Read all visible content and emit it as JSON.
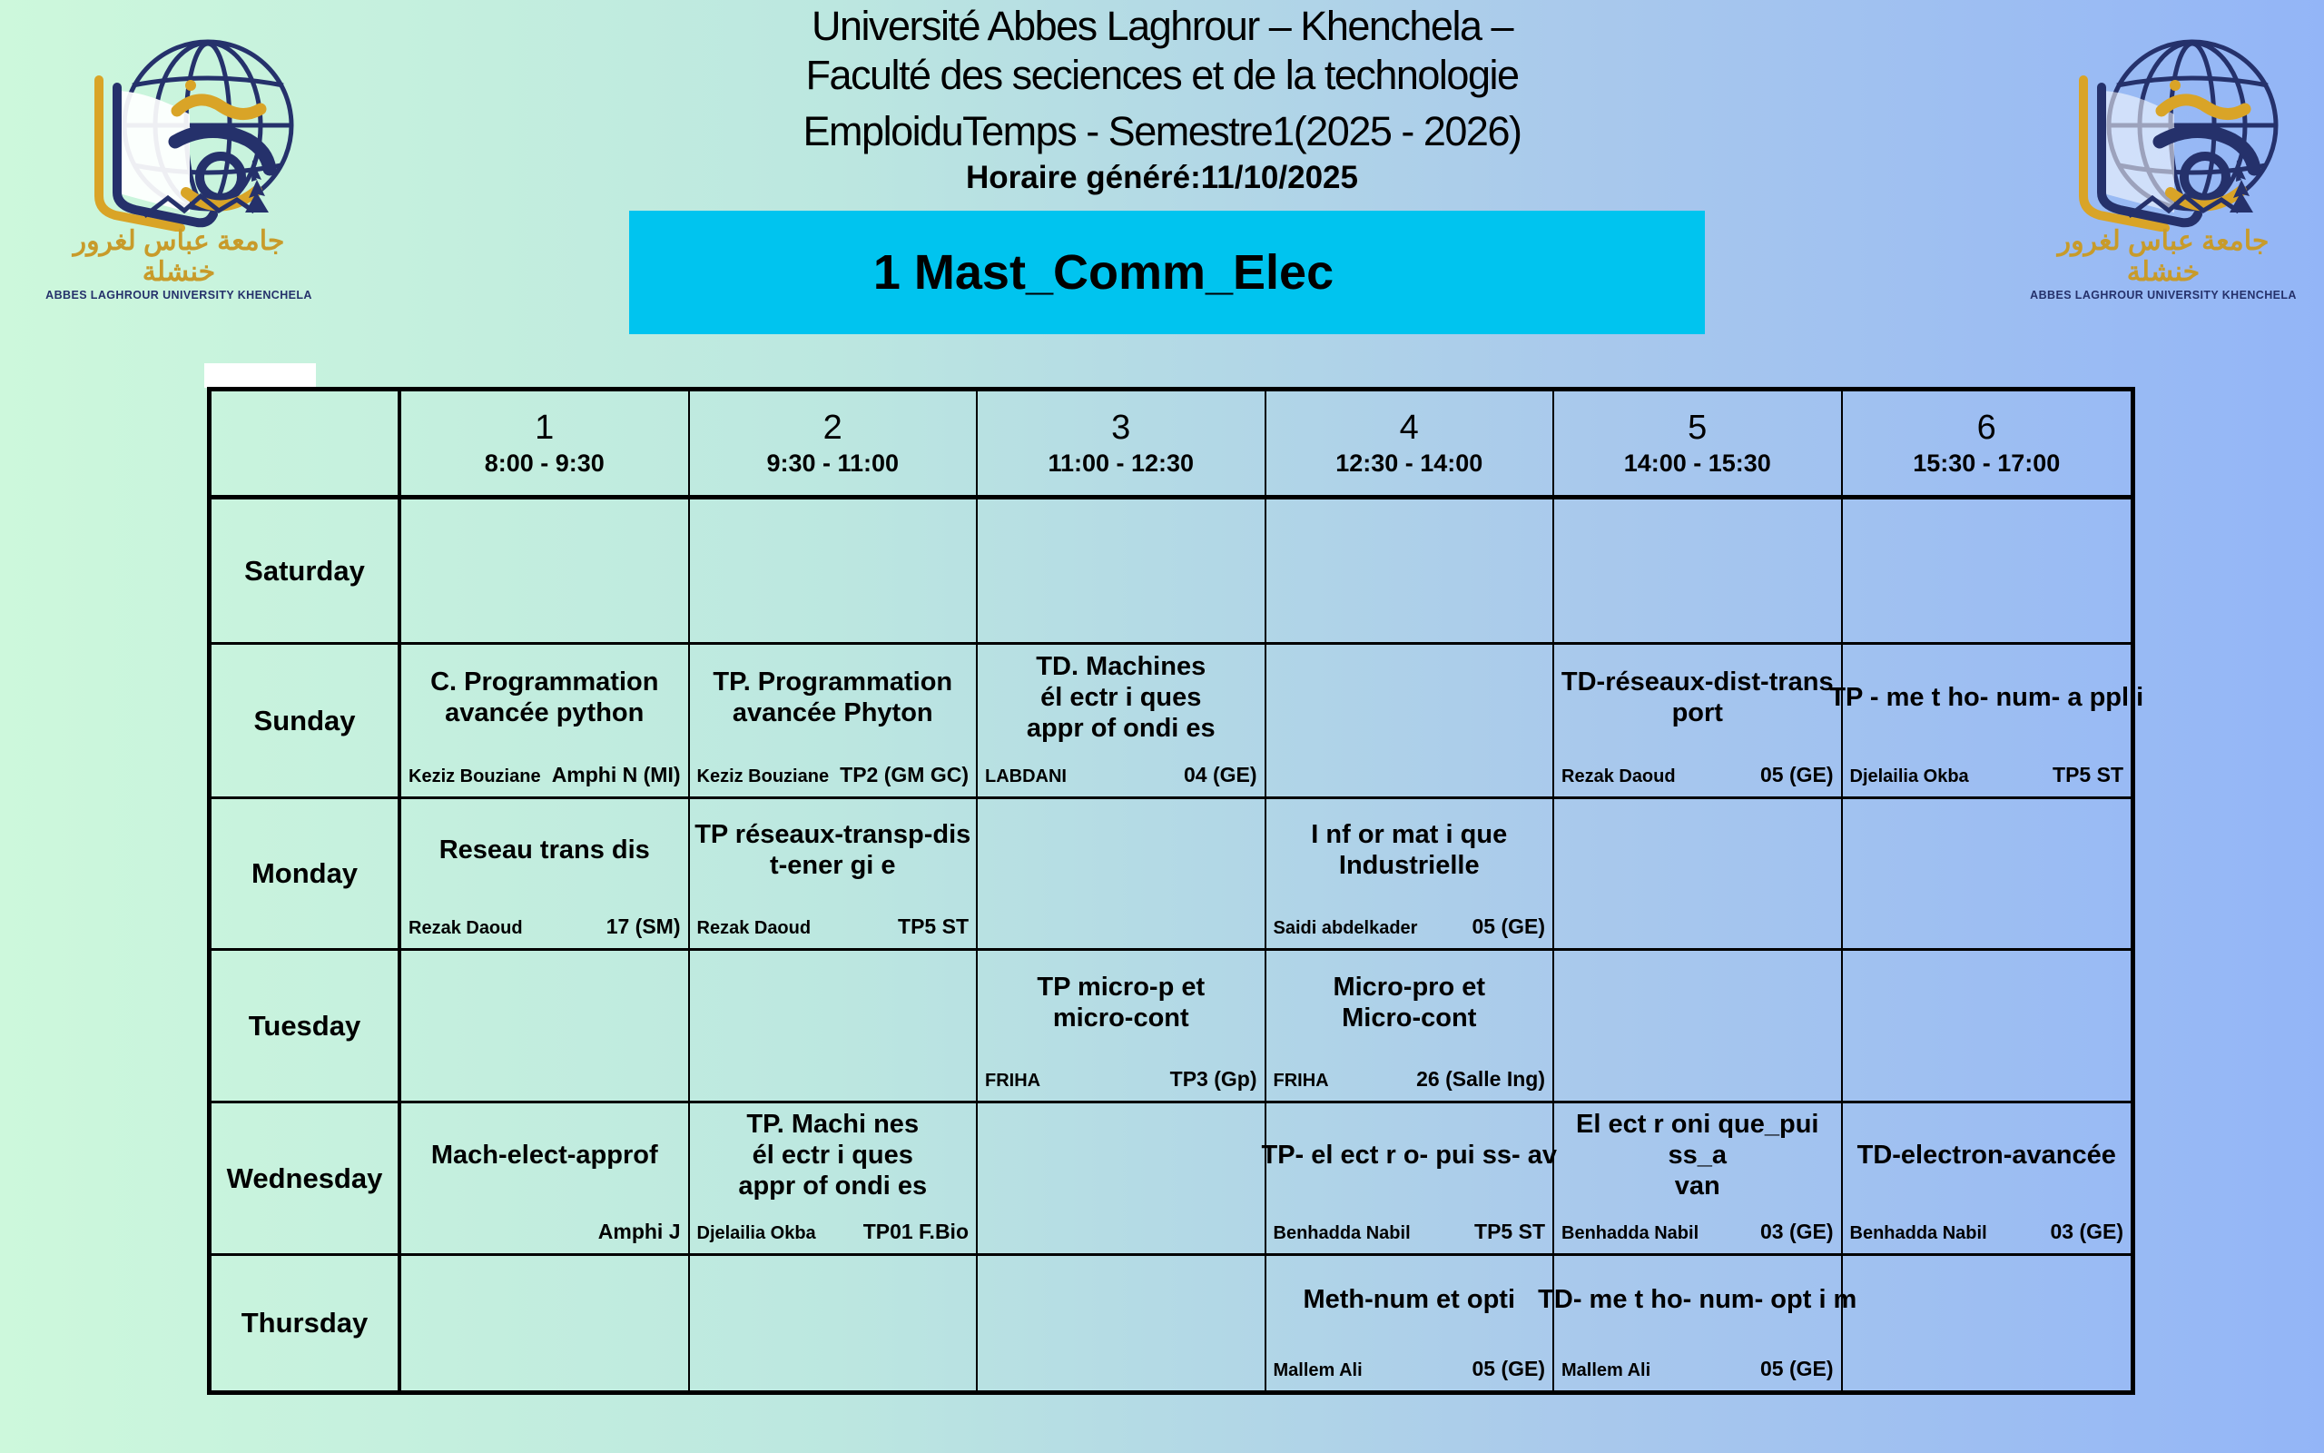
{
  "header": {
    "line1": "Université Abbes Laghrour – Khenchela –",
    "line2": "Faculté des seciences et de la technologie",
    "line3": "EmploiduTemps - Semestre1(2025 - 2026)",
    "generated": "Horaire généré:11/10/2025",
    "banner_label": "1 Mast_Comm_Elec"
  },
  "logo": {
    "arabic_name": "جامعة عباس لغرور خنشلة",
    "english_name": "ABBES LAGHROUR UNIVERSITY KHENCHELA"
  },
  "colors": {
    "banner_bg": "#00c4ef",
    "bg_left": "#cdf8dc",
    "bg_right": "#93b5f7",
    "logo_navy": "#25316b",
    "logo_gold": "#d9a427"
  },
  "timetable": {
    "periods": [
      {
        "num": "1",
        "time": "8:00 - 9:30"
      },
      {
        "num": "2",
        "time": "9:30 - 11:00"
      },
      {
        "num": "3",
        "time": "11:00 - 12:30"
      },
      {
        "num": "4",
        "time": "12:30 - 14:00"
      },
      {
        "num": "5",
        "time": "14:00 - 15:30"
      },
      {
        "num": "6",
        "time": "15:30 - 17:00"
      }
    ],
    "days": [
      {
        "name": "Saturday",
        "cells": [
          null,
          null,
          null,
          null,
          null,
          null
        ]
      },
      {
        "name": "Sunday",
        "cells": [
          {
            "title": "C. Programmation\navancée python",
            "teacher": "Keziz Bouziane",
            "room": "Amphi N (MI)"
          },
          {
            "title": "TP. Programmation\navancée Phyton",
            "teacher": "Keziz Bouziane",
            "room": "TP2 (GM GC)"
          },
          {
            "title": "TD. Machines\nél ectr i ques\nappr of ondi es",
            "teacher": "LABDANI",
            "room": "04 (GE)"
          },
          null,
          {
            "title": "TD-réseaux-dist-trans\nport",
            "teacher": "Rezak Daoud",
            "room": "05 (GE)"
          },
          {
            "title": "TP - me t ho- num- a ppl i",
            "teacher": "Djelailia Okba",
            "room": "TP5 ST",
            "nowrap": true
          }
        ]
      },
      {
        "name": "Monday",
        "cells": [
          {
            "title": "Reseau trans dis",
            "teacher": "Rezak Daoud",
            "room": "17 (SM)"
          },
          {
            "title": "TP réseaux-transp-dis\nt-ener gi e",
            "teacher": "Rezak Daoud",
            "room": "TP5 ST"
          },
          null,
          {
            "title": "I nf or mat i que\nIndustrielle",
            "teacher": "Saidi abdelkader",
            "room": "05 (GE)"
          },
          null,
          null
        ]
      },
      {
        "name": "Tuesday",
        "cells": [
          null,
          null,
          {
            "title": "TP micro-p et\nmicro-cont",
            "teacher": "FRIHA",
            "room": "TP3 (Gp)"
          },
          {
            "title": "Micro-pro et\nMicro-cont",
            "teacher": "FRIHA",
            "room": "26 (Salle Ing)"
          },
          null,
          null
        ]
      },
      {
        "name": "Wednesday",
        "cells": [
          {
            "title": "Mach-elect-approf",
            "teacher": "",
            "room": "Amphi J"
          },
          {
            "title": "TP. Machi nes\nél ectr i ques\nappr of ondi es",
            "teacher": "Djelailia Okba",
            "room": "TP01 F.Bio"
          },
          null,
          {
            "title": "TP- el ect r o- pui ss- av",
            "teacher": "Benhadda Nabil",
            "room": "TP5 ST",
            "nowrap": true
          },
          {
            "title": "El ect r oni que_pui ss_a\nvan",
            "teacher": "Benhadda Nabil",
            "room": "03 (GE)"
          },
          {
            "title": "TD-electron-avancée",
            "teacher": "Benhadda Nabil",
            "room": "03 (GE)"
          }
        ]
      },
      {
        "name": "Thursday",
        "cells": [
          null,
          null,
          null,
          {
            "title": "Meth-num et opti",
            "teacher": "Mallem Ali",
            "room": "05 (GE)"
          },
          {
            "title": "TD- me t ho- num- opt i m",
            "teacher": "Mallem Ali",
            "room": "05 (GE)",
            "nowrap": true
          },
          null
        ]
      }
    ]
  }
}
